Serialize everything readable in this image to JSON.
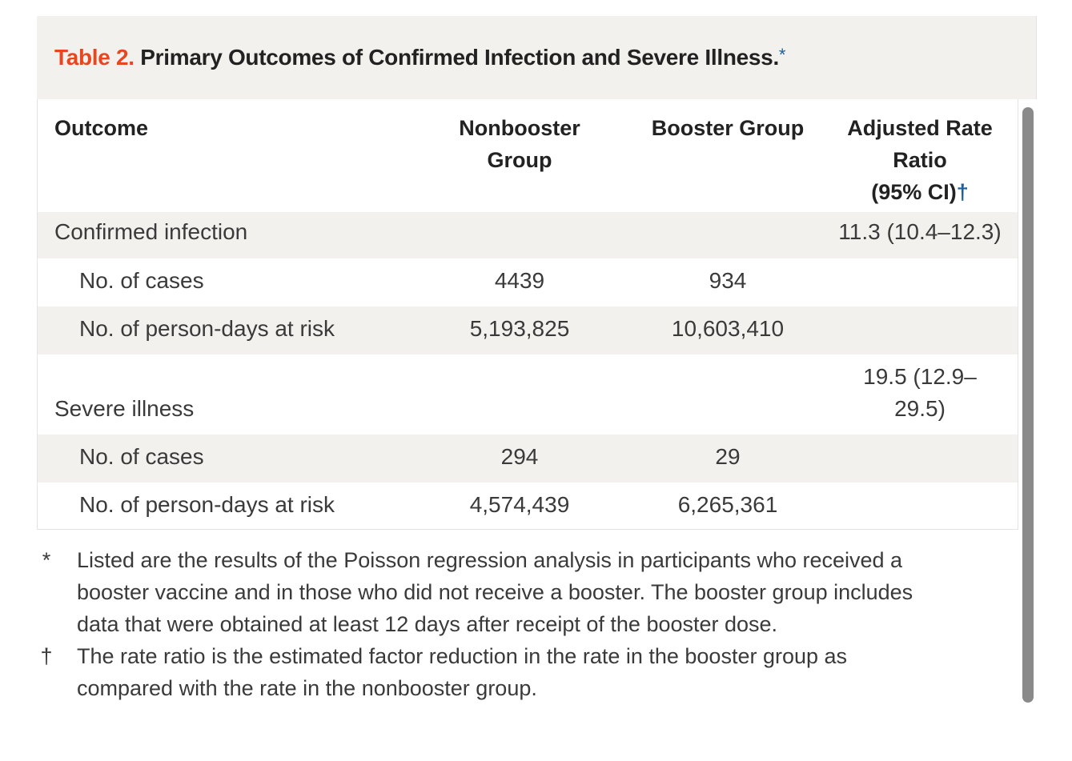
{
  "table": {
    "number_label": "Table 2.",
    "title": "Primary Outcomes of Confirmed Infection and Severe Illness.",
    "title_marker": "*",
    "headers": {
      "outcome": "Outcome",
      "nonbooster_line1": "Nonbooster",
      "nonbooster_line2": "Group",
      "booster": "Booster Group",
      "ratio_line1": "Adjusted Rate",
      "ratio_line2": "Ratio",
      "ratio_line3": "(95% CI)",
      "ratio_marker": "†"
    },
    "rows": [
      {
        "label": "Confirmed infection",
        "nonbooster": "",
        "booster": "",
        "ratio": "11.3 (10.4–12.3)"
      },
      {
        "label": "No. of cases",
        "nonbooster": "4439",
        "booster": "934",
        "ratio": ""
      },
      {
        "label": "No. of person-days at risk",
        "nonbooster": "5,193,825",
        "booster": "10,603,410",
        "ratio": ""
      },
      {
        "label": "Severe illness",
        "nonbooster": "",
        "booster": "",
        "ratio_line1": "19.5 (12.9–",
        "ratio_line2": "29.5)"
      },
      {
        "label": "No. of cases",
        "nonbooster": "294",
        "booster": "29",
        "ratio": ""
      },
      {
        "label": "No. of person-days at risk",
        "nonbooster": "4,574,439",
        "booster": "6,265,361",
        "ratio": ""
      }
    ]
  },
  "footnotes": [
    {
      "symbol": "*",
      "line1": "Listed are the results of the Poisson regression analysis in participants who received a",
      "line2": "booster vaccine and in those who did not receive a booster. The booster group includes",
      "line3": "data that were obtained at least 12 days after receipt of the booster dose."
    },
    {
      "symbol": "†",
      "line1": "The rate ratio is the estimated factor reduction in the rate in the booster group as",
      "line2": "compared with the rate in the nonbooster group."
    }
  ],
  "colors": {
    "table_number": "#e8461e",
    "marker_blue": "#1b5f9c",
    "row_shade": "#f2f1ee"
  }
}
